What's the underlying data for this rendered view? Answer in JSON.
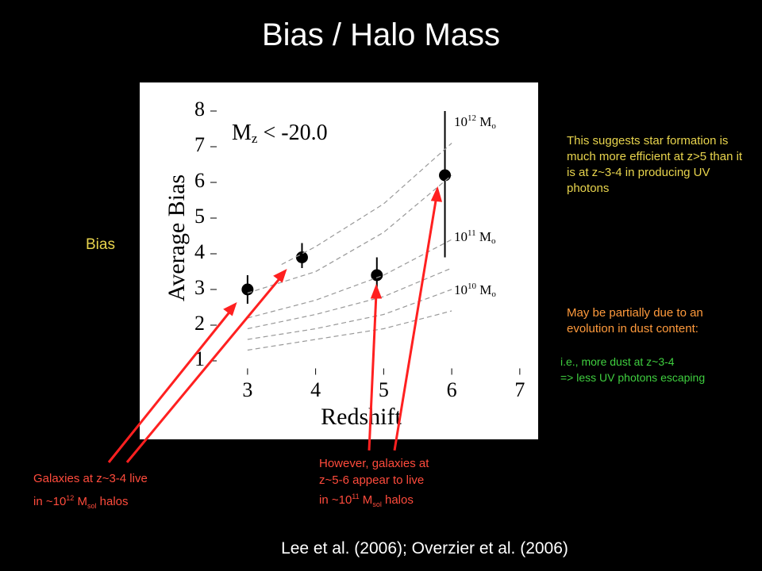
{
  "slide": {
    "title": "Bias / Halo Mass",
    "side_label": "Bias",
    "note_yellow": "This suggests star formation is much more efficient at z>5 than it is at z~3-4 in producing UV photons",
    "note_orange": "May be partially due to an evolution in dust content:",
    "note_green": [
      "i.e., more dust at z~3-4",
      "=> less UV photons escaping"
    ],
    "left_caption": [
      "Galaxies at z~3-4 live",
      "in ~10",
      "12",
      " M",
      "sol",
      " halos"
    ],
    "mid_caption": [
      "However, galaxies at",
      "z~5-6 appear to live",
      "in ~10",
      "11",
      " M",
      "sol",
      " halos"
    ],
    "footer": "Lee et al. (2006); Overzier et al. (2006)"
  },
  "chart_data": {
    "type": "scatter",
    "xlabel": "Redshift",
    "ylabel": "Average Bias",
    "annotation": [
      "M",
      "z",
      " < -20.0"
    ],
    "curve_labels": [
      [
        "10",
        "12",
        " M",
        "o"
      ],
      [
        "10",
        "11",
        " M",
        "o"
      ],
      [
        "10",
        "10",
        " M",
        "o"
      ]
    ],
    "xlim": [
      2.5,
      7.2
    ],
    "ylim": [
      0.7,
      8.3
    ],
    "xticks": [
      3,
      4,
      5,
      6,
      7
    ],
    "yticks": [
      1,
      2,
      3,
      4,
      5,
      6,
      7,
      8
    ],
    "series": [
      {
        "type": "scatter",
        "color": "#000000",
        "x": [
          3.0,
          3.8,
          4.9,
          5.9
        ],
        "values": [
          3.0,
          3.9,
          3.4,
          6.2
        ],
        "yerr_low": [
          0.4,
          0.3,
          0.5,
          2.3
        ],
        "yerr_high": [
          0.4,
          0.4,
          0.5,
          1.8
        ]
      },
      {
        "type": "line",
        "color": "#999999",
        "x": [
          3.5,
          4,
          5,
          6
        ],
        "values": [
          3.7,
          4.2,
          5.4,
          7.1
        ]
      },
      {
        "type": "line",
        "color": "#999999",
        "x": [
          3,
          4,
          5,
          6
        ],
        "values": [
          2.9,
          3.5,
          4.6,
          6.2
        ]
      },
      {
        "type": "line",
        "color": "#999999",
        "x": [
          3,
          4,
          5,
          6
        ],
        "values": [
          2.2,
          2.7,
          3.4,
          4.4
        ]
      },
      {
        "type": "line",
        "color": "#999999",
        "x": [
          3,
          4,
          5,
          6
        ],
        "values": [
          1.9,
          2.3,
          2.8,
          3.6
        ]
      },
      {
        "type": "line",
        "color": "#999999",
        "x": [
          3,
          4,
          5,
          6
        ],
        "values": [
          1.6,
          1.9,
          2.3,
          3.0
        ]
      },
      {
        "type": "line",
        "color": "#999999",
        "x": [
          3,
          4,
          5,
          6
        ],
        "values": [
          1.3,
          1.6,
          1.9,
          2.4
        ]
      }
    ]
  }
}
